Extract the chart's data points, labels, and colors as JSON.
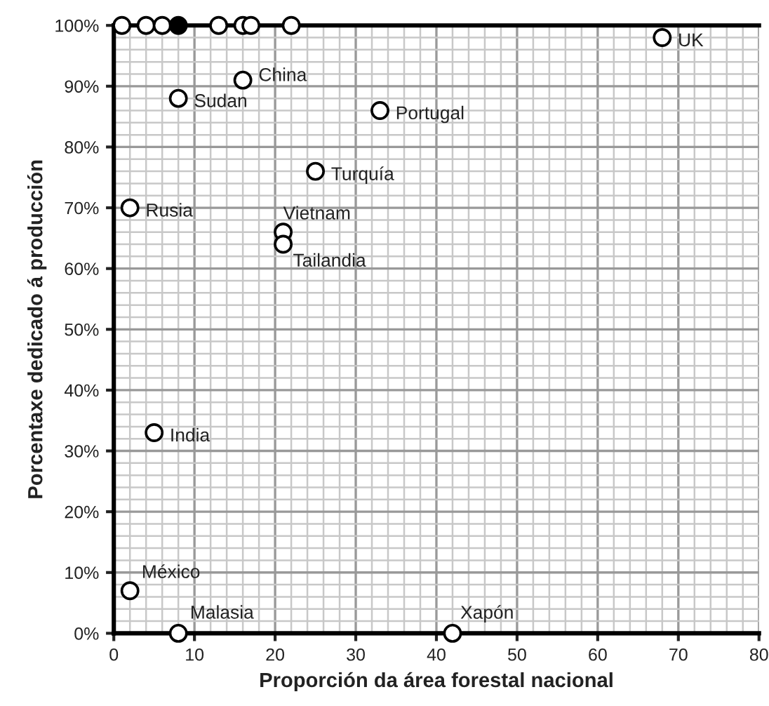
{
  "chart_data": {
    "type": "scatter",
    "xlabel": "Proporción da área forestal nacional",
    "ylabel": "Porcentaxe dedicado á producción",
    "x": [
      1,
      4,
      6,
      8,
      13,
      16,
      17,
      22,
      8,
      16,
      33,
      25,
      2,
      21,
      21,
      68,
      5,
      2,
      8,
      42
    ],
    "values": [
      100,
      100,
      100,
      100,
      100,
      100,
      100,
      100,
      88,
      91,
      86,
      76,
      70,
      66,
      64,
      98,
      33,
      7,
      0,
      0
    ],
    "colors": [
      "#ffffff",
      "#ffffff",
      "#ffffff",
      "#000000",
      "#ffffff",
      "#ffffff",
      "#ffffff",
      "#ffffff",
      "#ffffff",
      "#ffffff",
      "#ffffff",
      "#ffffff",
      "#ffffff",
      "#ffffff",
      "#ffffff",
      "#ffffff",
      "#ffffff",
      "#ffffff",
      "#ffffff",
      "#ffffff"
    ],
    "marker": "circle",
    "grid": true,
    "xlim": [
      0,
      80
    ],
    "ylim": [
      0,
      100
    ],
    "xticks": [
      0,
      10,
      20,
      30,
      40,
      50,
      60,
      70,
      80
    ],
    "yticks": [
      {
        "value": 0,
        "label": "0%"
      },
      {
        "value": 10,
        "label": "10%"
      },
      {
        "value": 20,
        "label": "20%"
      },
      {
        "value": 30,
        "label": "30%"
      },
      {
        "value": 40,
        "label": "40%"
      },
      {
        "value": 50,
        "label": "50%"
      },
      {
        "value": 60,
        "label": "60%"
      },
      {
        "value": 70,
        "label": "70%"
      },
      {
        "value": 80,
        "label": "80%"
      },
      {
        "value": 90,
        "label": "90%"
      },
      {
        "value": 100,
        "label": "100%"
      }
    ],
    "annotations": [
      {
        "text": "Sudan",
        "x": 8,
        "y": 88
      },
      {
        "text": "China",
        "x": 16,
        "y": 91
      },
      {
        "text": "Portugal",
        "x": 33,
        "y": 86
      },
      {
        "text": "Turquía",
        "x": 25,
        "y": 76
      },
      {
        "text": "Rusia",
        "x": 2,
        "y": 70
      },
      {
        "text": "Vietnam",
        "x": 21,
        "y": 66
      },
      {
        "text": "Tailandia",
        "x": 21,
        "y": 64
      },
      {
        "text": "UK",
        "x": 68,
        "y": 98
      },
      {
        "text": "India",
        "x": 5,
        "y": 33
      },
      {
        "text": "México",
        "x": 2,
        "y": 7
      },
      {
        "text": "Malasia",
        "x": 8,
        "y": 0
      },
      {
        "text": "Xapón",
        "x": 42,
        "y": 0
      }
    ]
  }
}
